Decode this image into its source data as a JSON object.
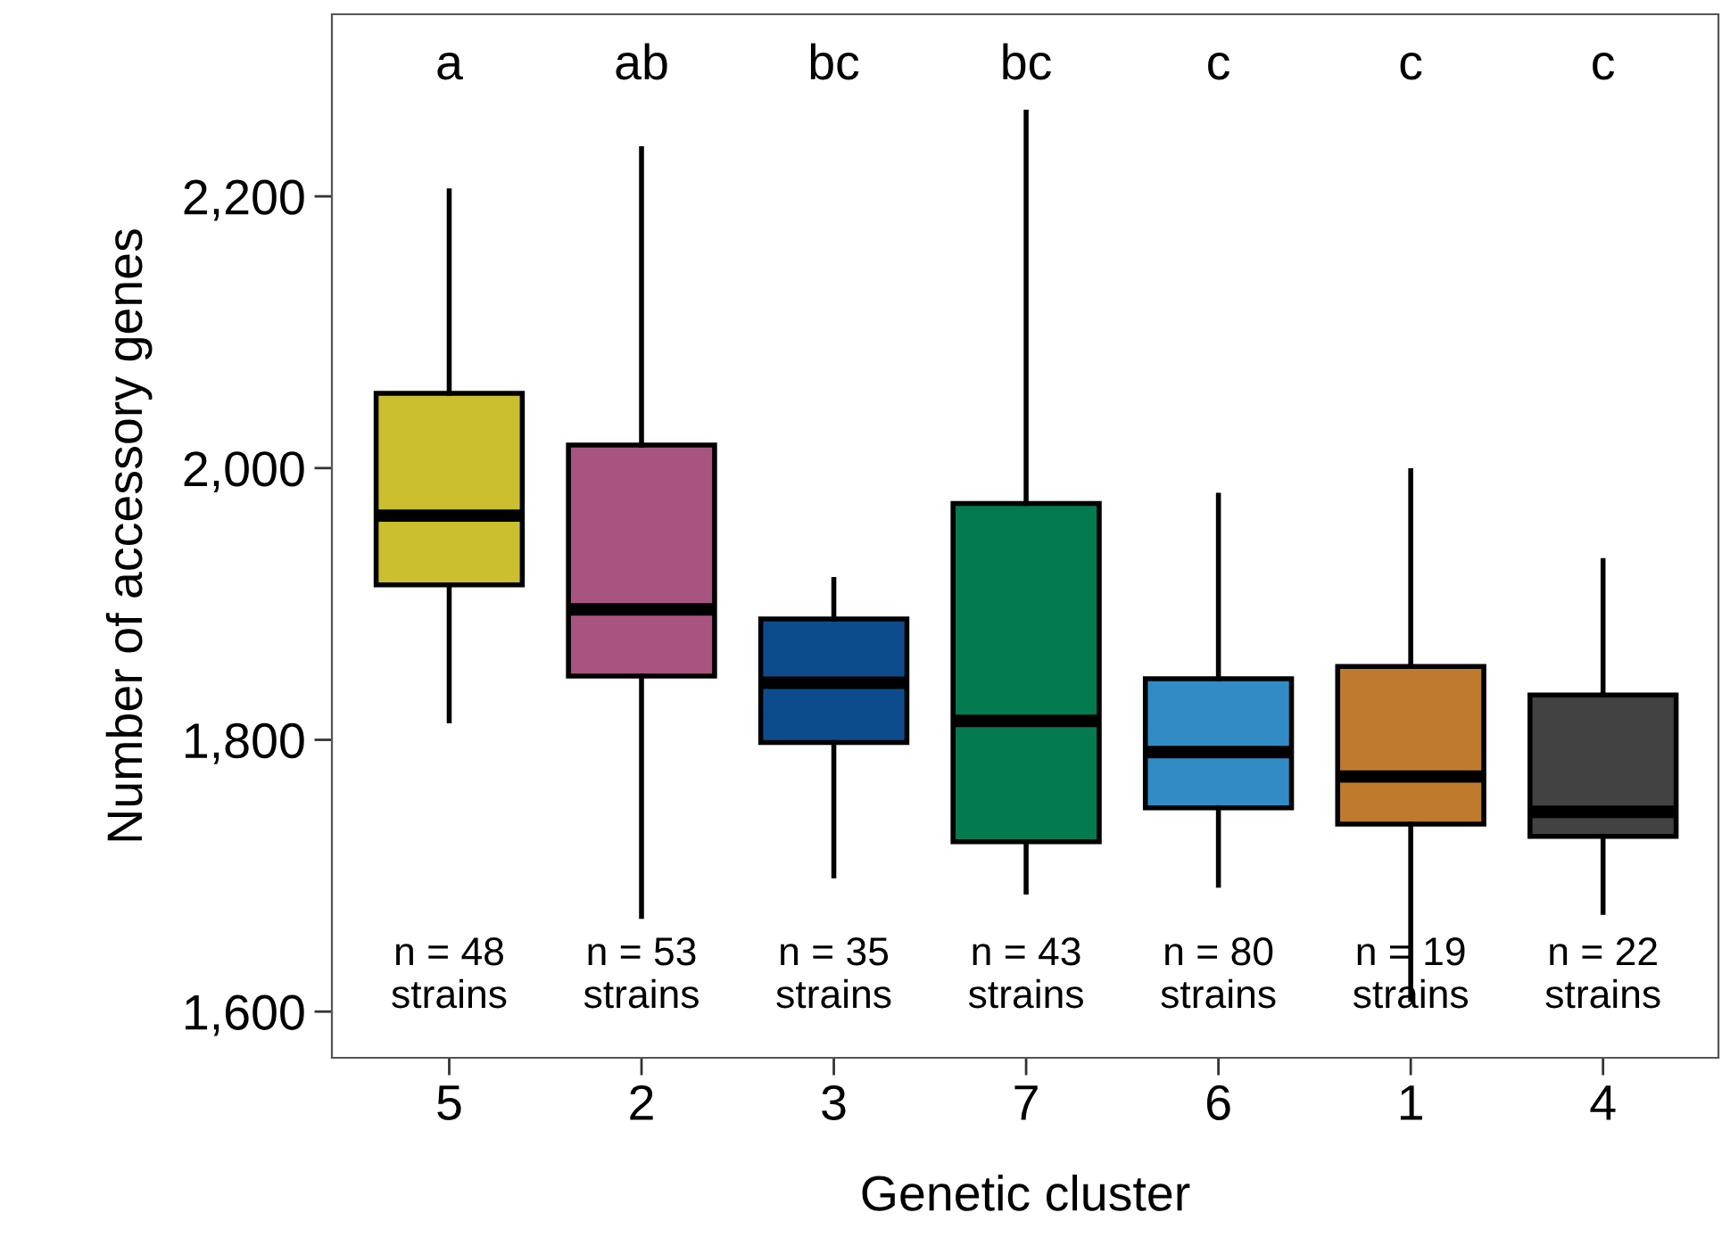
{
  "chart_data": {
    "type": "box",
    "xlabel": "Genetic cluster",
    "ylabel": "Number of accessory genes",
    "categories": [
      "5",
      "2",
      "3",
      "7",
      "6",
      "1",
      "4"
    ],
    "colors": [
      "#cbbf2f",
      "#a85480",
      "#0d4c8c",
      "#047a4f",
      "#318cc6",
      "#bf7b2d",
      "#424242"
    ],
    "boxes": [
      {
        "low": 1814,
        "q1": 1914,
        "median": 1965,
        "q3": 2055,
        "high": 2204
      },
      {
        "low": 1670,
        "q1": 1847,
        "median": 1896,
        "q3": 2017,
        "high": 2235
      },
      {
        "low": 1700,
        "q1": 1798,
        "median": 1842,
        "q3": 1889,
        "high": 1918
      },
      {
        "low": 1688,
        "q1": 1725,
        "median": 1814,
        "q3": 1974,
        "high": 2262
      },
      {
        "low": 1693,
        "q1": 1750,
        "median": 1791,
        "q3": 1845,
        "high": 1980
      },
      {
        "low": 1609,
        "q1": 1738,
        "median": 1773,
        "q3": 1854,
        "high": 1998
      },
      {
        "low": 1673,
        "q1": 1729,
        "median": 1747,
        "q3": 1833,
        "high": 1932
      }
    ],
    "ylim": [
      1566,
      2334
    ],
    "yticks": [
      {
        "value": 1600,
        "label": "1,600"
      },
      {
        "value": 1800,
        "label": "1,800"
      },
      {
        "value": 2000,
        "label": "2,000"
      },
      {
        "value": 2200,
        "label": "2,200"
      }
    ],
    "grid": false,
    "annotations": [
      "a",
      "ab",
      "bc",
      "bc",
      "c",
      "c",
      "c",
      "n = 48\nstrains",
      "n = 53\nstrains",
      "n = 35\nstrains",
      "n = 43\nstrains",
      "n = 80\nstrains",
      "n = 19\nstrains",
      "n = 22\nstrains"
    ]
  }
}
